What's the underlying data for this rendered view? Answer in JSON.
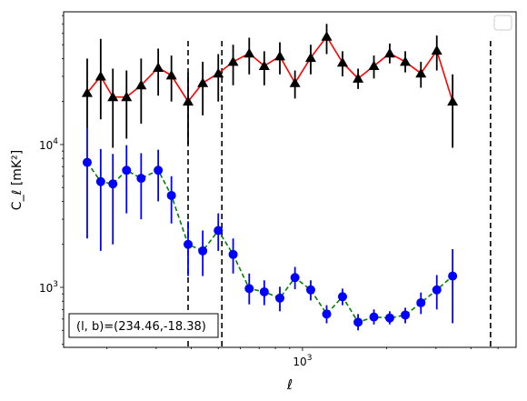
{
  "chart_data": {
    "type": "line",
    "xlabel": "ℓ",
    "ylabel": "C_ℓ [mK²]",
    "x_scale": "log",
    "y_scale": "log",
    "xlim": [
      140,
      5800
    ],
    "ylim": [
      380,
      85000
    ],
    "x_ticks": [
      {
        "value": 1000,
        "base": "10",
        "exp": "3"
      }
    ],
    "y_ticks": [
      {
        "value": 1000,
        "base": "10",
        "exp": "3"
      },
      {
        "value": 10000,
        "base": "10",
        "exp": "4"
      }
    ],
    "vlines": [
      390,
      515,
      4700
    ],
    "annotation": "(l, b)=(234.46,-18.38)",
    "legend": {
      "placement": "top-right",
      "entries": []
    },
    "series": [
      {
        "color": "#ff0000",
        "marker": "triangle",
        "marker_color": "#000000",
        "errorbar_color": "#000000",
        "line_style": "solid",
        "points": [
          {
            "x": 170,
            "y": 23000,
            "lo": 13000,
            "hi": 40000
          },
          {
            "x": 190,
            "y": 30000,
            "lo": 15000,
            "hi": 55000
          },
          {
            "x": 210,
            "y": 21500,
            "lo": 9500,
            "hi": 34000
          },
          {
            "x": 235,
            "y": 21500,
            "lo": 11000,
            "hi": 33000
          },
          {
            "x": 265,
            "y": 26000,
            "lo": 14000,
            "hi": 40000
          },
          {
            "x": 305,
            "y": 34500,
            "lo": 22000,
            "hi": 47000
          },
          {
            "x": 340,
            "y": 30500,
            "lo": 20000,
            "hi": 42000
          },
          {
            "x": 390,
            "y": 20000,
            "lo": 10000,
            "hi": 32000
          },
          {
            "x": 440,
            "y": 27000,
            "lo": 16000,
            "hi": 38000
          },
          {
            "x": 500,
            "y": 31500,
            "lo": 20000,
            "hi": 43000
          },
          {
            "x": 565,
            "y": 38000,
            "lo": 26000,
            "hi": 50000
          },
          {
            "x": 645,
            "y": 43500,
            "lo": 31000,
            "hi": 56000
          },
          {
            "x": 730,
            "y": 35500,
            "lo": 26000,
            "hi": 45000
          },
          {
            "x": 830,
            "y": 41500,
            "lo": 31000,
            "hi": 52000
          },
          {
            "x": 940,
            "y": 27000,
            "lo": 21000,
            "hi": 33000
          },
          {
            "x": 1070,
            "y": 40500,
            "lo": 31000,
            "hi": 50000
          },
          {
            "x": 1220,
            "y": 57000,
            "lo": 43000,
            "hi": 70000
          },
          {
            "x": 1390,
            "y": 37500,
            "lo": 30000,
            "hi": 45000
          },
          {
            "x": 1580,
            "y": 29000,
            "lo": 24500,
            "hi": 34000
          },
          {
            "x": 1800,
            "y": 35500,
            "lo": 29000,
            "hi": 42000
          },
          {
            "x": 2050,
            "y": 43500,
            "lo": 37000,
            "hi": 51000
          },
          {
            "x": 2330,
            "y": 38000,
            "lo": 32000,
            "hi": 45000
          },
          {
            "x": 2650,
            "y": 31500,
            "lo": 25000,
            "hi": 38000
          },
          {
            "x": 3020,
            "y": 45500,
            "lo": 33000,
            "hi": 58000
          },
          {
            "x": 3440,
            "y": 20000,
            "lo": 9500,
            "hi": 31000
          }
        ]
      },
      {
        "color": "#008000",
        "marker": "circle",
        "marker_color": "#0000ff",
        "errorbar_color": "#0000ff",
        "line_style": "dashed",
        "points": [
          {
            "x": 170,
            "y": 7500,
            "lo": 2200,
            "hi": 13000
          },
          {
            "x": 190,
            "y": 5500,
            "lo": 1800,
            "hi": 9300
          },
          {
            "x": 210,
            "y": 5300,
            "lo": 2000,
            "hi": 8600
          },
          {
            "x": 235,
            "y": 6600,
            "lo": 3300,
            "hi": 9900
          },
          {
            "x": 265,
            "y": 5800,
            "lo": 3000,
            "hi": 8700
          },
          {
            "x": 305,
            "y": 6600,
            "lo": 4000,
            "hi": 9200
          },
          {
            "x": 340,
            "y": 4400,
            "lo": 2800,
            "hi": 6000
          },
          {
            "x": 390,
            "y": 2000,
            "lo": 1200,
            "hi": 2900
          },
          {
            "x": 440,
            "y": 1800,
            "lo": 1200,
            "hi": 2500
          },
          {
            "x": 500,
            "y": 2500,
            "lo": 1800,
            "hi": 3300
          },
          {
            "x": 565,
            "y": 1700,
            "lo": 1250,
            "hi": 2200
          },
          {
            "x": 645,
            "y": 980,
            "lo": 760,
            "hi": 1250
          },
          {
            "x": 730,
            "y": 930,
            "lo": 750,
            "hi": 1120
          },
          {
            "x": 830,
            "y": 840,
            "lo": 680,
            "hi": 1010
          },
          {
            "x": 940,
            "y": 1170,
            "lo": 970,
            "hi": 1390
          },
          {
            "x": 1070,
            "y": 960,
            "lo": 810,
            "hi": 1120
          },
          {
            "x": 1220,
            "y": 650,
            "lo": 560,
            "hi": 750
          },
          {
            "x": 1390,
            "y": 860,
            "lo": 750,
            "hi": 980
          },
          {
            "x": 1580,
            "y": 570,
            "lo": 500,
            "hi": 650
          },
          {
            "x": 1800,
            "y": 620,
            "lo": 550,
            "hi": 700
          },
          {
            "x": 2050,
            "y": 610,
            "lo": 550,
            "hi": 680
          },
          {
            "x": 2330,
            "y": 640,
            "lo": 560,
            "hi": 720
          },
          {
            "x": 2650,
            "y": 780,
            "lo": 650,
            "hi": 920
          },
          {
            "x": 3020,
            "y": 960,
            "lo": 700,
            "hi": 1220
          },
          {
            "x": 3440,
            "y": 1200,
            "lo": 560,
            "hi": 1850
          }
        ]
      }
    ]
  }
}
